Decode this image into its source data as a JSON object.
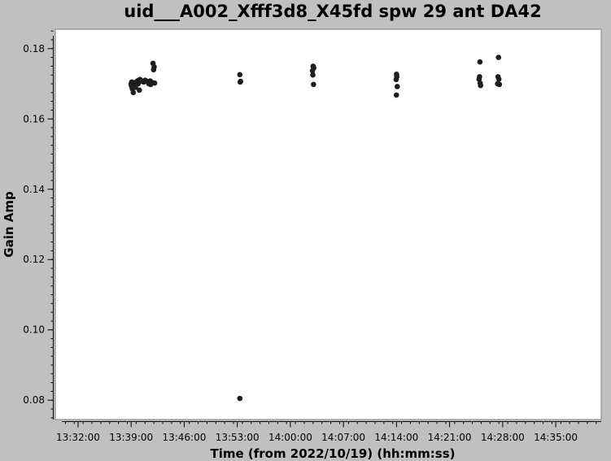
{
  "chart_data": {
    "type": "scatter",
    "title": "uid___A002_Xfff3d8_X45fd spw 29 ant DA42",
    "xlabel": "Time (from 2022/10/19) (hh:mm:ss)",
    "ylabel": "Gain Amp",
    "x_tick_labels": [
      "13:32:00",
      "13:39:00",
      "13:46:00",
      "13:53:00",
      "14:00:00",
      "14:07:00",
      "14:14:00",
      "14:21:00",
      "14:28:00",
      "14:35:00"
    ],
    "x_ticks_seconds": [
      48720,
      49140,
      49560,
      49980,
      50400,
      50820,
      51240,
      51660,
      52080,
      52500
    ],
    "xlim_seconds": [
      48540,
      52860
    ],
    "y_ticks": [
      0.08,
      0.1,
      0.12,
      0.14,
      0.16,
      0.18
    ],
    "ylim": [
      0.0745,
      0.1855
    ],
    "grid": false,
    "point_color": "#1e1e1e",
    "points": [
      [
        49140,
        0.17
      ],
      [
        49142,
        0.1695
      ],
      [
        49145,
        0.1705
      ],
      [
        49147,
        0.169
      ],
      [
        49150,
        0.1685
      ],
      [
        49152,
        0.1698
      ],
      [
        49155,
        0.1703
      ],
      [
        49157,
        0.1675
      ],
      [
        49160,
        0.1692
      ],
      [
        49163,
        0.17
      ],
      [
        49168,
        0.1702
      ],
      [
        49174,
        0.169
      ],
      [
        49180,
        0.1705
      ],
      [
        49190,
        0.1708
      ],
      [
        49195,
        0.17
      ],
      [
        49200,
        0.171
      ],
      [
        49205,
        0.1682
      ],
      [
        49210,
        0.1712
      ],
      [
        49220,
        0.1708
      ],
      [
        49230,
        0.1707
      ],
      [
        49240,
        0.1705
      ],
      [
        49250,
        0.171
      ],
      [
        49260,
        0.1708
      ],
      [
        49270,
        0.1706
      ],
      [
        49280,
        0.17
      ],
      [
        49290,
        0.1708
      ],
      [
        49295,
        0.1698
      ],
      [
        49300,
        0.1705
      ],
      [
        49313,
        0.1758
      ],
      [
        49318,
        0.174
      ],
      [
        49322,
        0.1748
      ],
      [
        49326,
        0.1702
      ],
      [
        50000,
        0.1726
      ],
      [
        50003,
        0.1705
      ],
      [
        50006,
        0.1707
      ],
      [
        50000,
        0.0805
      ],
      [
        50580,
        0.175
      ],
      [
        50585,
        0.1745
      ],
      [
        50575,
        0.1737
      ],
      [
        50578,
        0.1725
      ],
      [
        50583,
        0.1698
      ],
      [
        51240,
        0.1727
      ],
      [
        51242,
        0.172
      ],
      [
        51237,
        0.1712
      ],
      [
        51246,
        0.1692
      ],
      [
        51239,
        0.1668
      ],
      [
        51900,
        0.1762
      ],
      [
        51897,
        0.172
      ],
      [
        51893,
        0.1713
      ],
      [
        51902,
        0.1702
      ],
      [
        51905,
        0.1695
      ],
      [
        52047,
        0.1775
      ],
      [
        52043,
        0.172
      ],
      [
        52050,
        0.1713
      ],
      [
        52040,
        0.17
      ],
      [
        52054,
        0.1698
      ]
    ]
  }
}
